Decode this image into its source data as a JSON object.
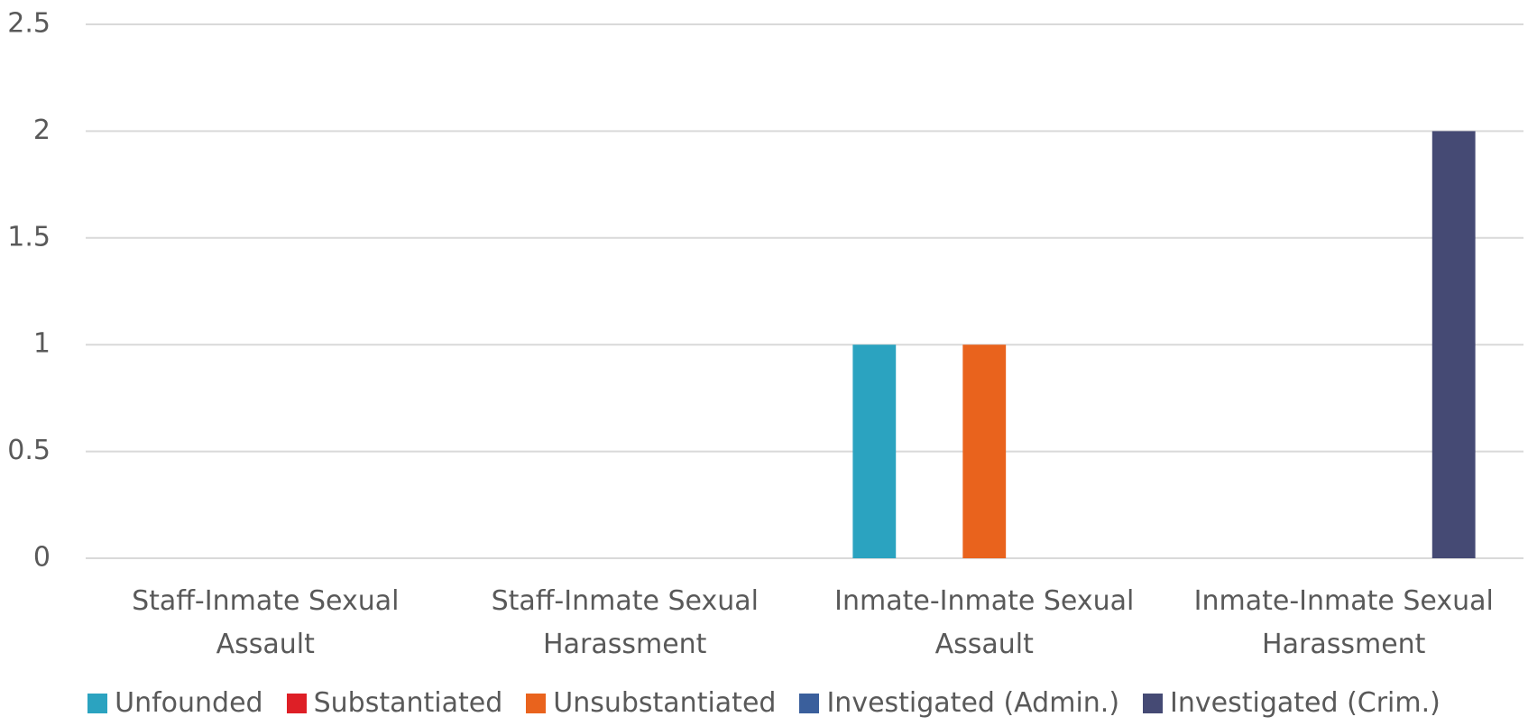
{
  "chart_data": {
    "type": "bar",
    "categories": [
      "Staff-Inmate Sexual Assault",
      "Staff-Inmate Sexual Harassment",
      "Inmate-Inmate Sexual Assault",
      "Inmate-Inmate Sexual Harassment"
    ],
    "series": [
      {
        "name": "Unfounded",
        "color": "#2ba3c0",
        "values": [
          0,
          0,
          1,
          0
        ]
      },
      {
        "name": "Substantiated",
        "color": "#de1f26",
        "values": [
          0,
          0,
          0,
          0
        ]
      },
      {
        "name": "Unsubstantiated",
        "color": "#e9631d",
        "values": [
          0,
          0,
          1,
          0
        ]
      },
      {
        "name": "Investigated (Admin.)",
        "color": "#3a5f9c",
        "values": [
          0,
          0,
          0,
          0
        ]
      },
      {
        "name": "Investigated (Crim.)",
        "color": "#454a74",
        "values": [
          0,
          0,
          0,
          2
        ]
      }
    ],
    "ylim": [
      0,
      2.5
    ],
    "yticks": [
      0,
      0.5,
      1,
      1.5,
      2,
      2.5
    ],
    "grid": true,
    "legend": "bottom"
  }
}
